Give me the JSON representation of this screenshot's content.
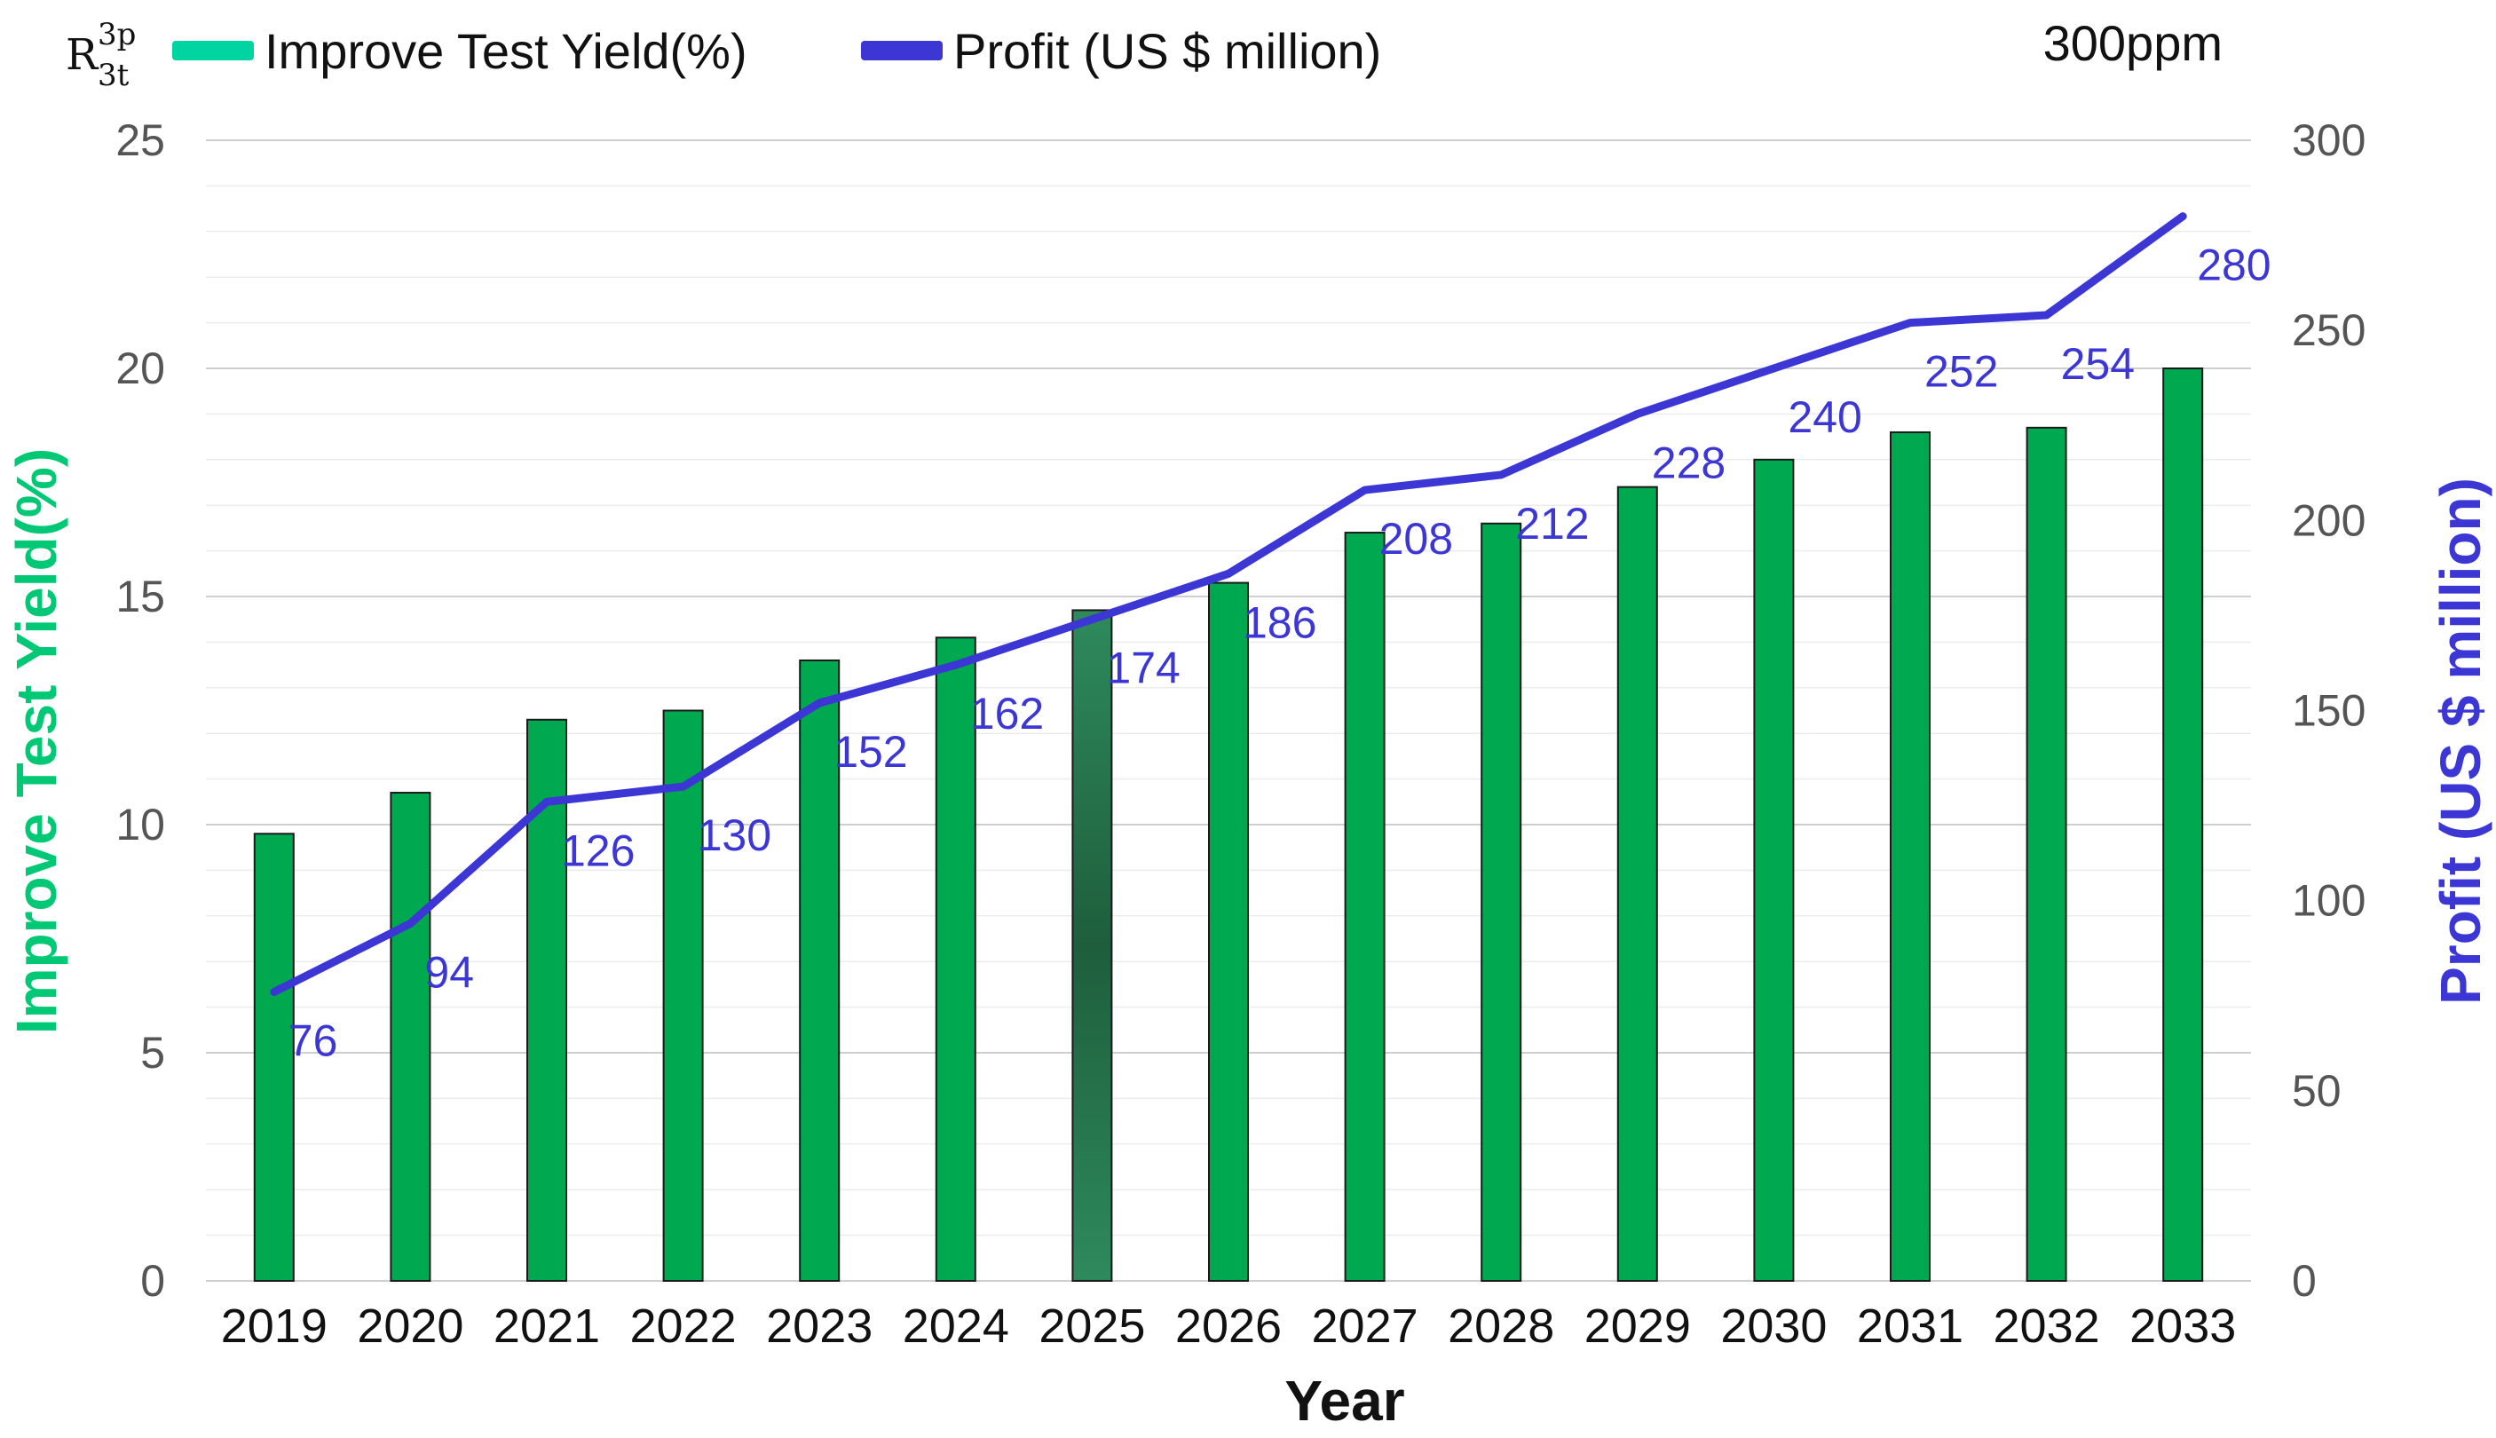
{
  "corner_label": {
    "base": "R",
    "sup": "3p",
    "sub": "3t"
  },
  "annotation": "300ppm",
  "legend": [
    {
      "label": "Improve Test Yield(%)",
      "color": "#00D4A0"
    },
    {
      "label": "Profit (US $ million)",
      "color": "#3B36D4"
    }
  ],
  "colors": {
    "bar": "#00A84F",
    "bar_highlight": "#1E5E3C",
    "line": "#3B36D4",
    "y_left_title": "#00C875",
    "y_right_title": "#3B36D4"
  },
  "chart_data": {
    "type": "bar",
    "categories": [
      "2019",
      "2020",
      "2021",
      "2022",
      "2023",
      "2024",
      "2025",
      "2026",
      "2027",
      "2028",
      "2029",
      "2030",
      "2031",
      "2032",
      "2033"
    ],
    "series": [
      {
        "name": "Improve Test Yield(%)",
        "type": "bar",
        "axis": "left",
        "values": [
          9.8,
          10.7,
          12.3,
          12.5,
          13.6,
          14.1,
          14.7,
          15.3,
          16.4,
          16.6,
          17.4,
          18.0,
          18.6,
          18.7,
          20.0
        ]
      },
      {
        "name": "Profit (US $ million)",
        "type": "line",
        "axis": "right",
        "values": [
          76,
          94,
          126,
          130,
          152,
          162,
          174,
          186,
          208,
          212,
          228,
          240,
          252,
          254,
          280
        ],
        "labels": [
          "76",
          "94",
          "126",
          "130",
          "152",
          "162",
          "174",
          "186",
          "208",
          "212",
          "228",
          "240",
          "252",
          "254",
          "280"
        ]
      }
    ],
    "highlight_category": "2025",
    "xlabel": "Year",
    "ylabel_left": "Improve Test Yield(%)",
    "ylabel_right": "Profit (US $ million)",
    "ylim_left": [
      0,
      25
    ],
    "ylim_right": [
      0,
      300
    ],
    "yticks_left": [
      "0",
      "5",
      "10",
      "15",
      "20",
      "25"
    ],
    "yticks_right": [
      "0",
      "50",
      "100",
      "150",
      "200",
      "250",
      "300"
    ],
    "grid": true,
    "legend_position": "top-left"
  }
}
